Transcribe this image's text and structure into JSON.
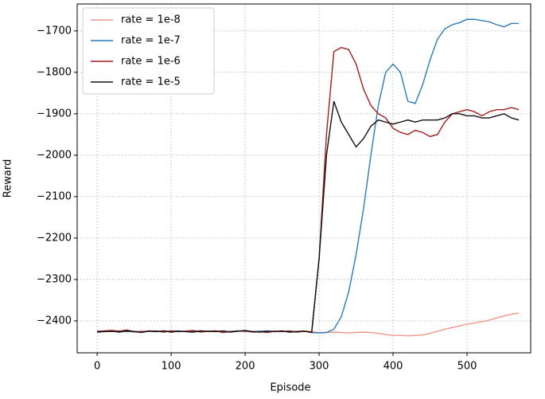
{
  "chart_data": {
    "type": "line",
    "x_label": "Episode",
    "y_label": "Reward",
    "x": [
      0,
      10,
      20,
      30,
      40,
      50,
      60,
      70,
      80,
      90,
      100,
      110,
      120,
      130,
      140,
      150,
      160,
      170,
      180,
      190,
      200,
      210,
      220,
      230,
      240,
      250,
      260,
      270,
      280,
      290,
      300,
      310,
      320,
      330,
      340,
      350,
      360,
      370,
      380,
      390,
      400,
      410,
      420,
      430,
      440,
      450,
      460,
      470,
      480,
      490,
      500,
      510,
      520,
      530,
      540,
      550,
      560,
      570
    ],
    "series": [
      {
        "name": "rate = 1e-8",
        "color": "#f4978a",
        "values": [
          -2425,
          -2424,
          -2426,
          -2424,
          -2425,
          -2427,
          -2424,
          -2425,
          -2426,
          -2424,
          -2425,
          -2426,
          -2424,
          -2425,
          -2426,
          -2425,
          -2424,
          -2426,
          -2425,
          -2424,
          -2426,
          -2425,
          -2425,
          -2426,
          -2424,
          -2425,
          -2426,
          -2425,
          -2424,
          -2426,
          -2428,
          -2428,
          -2427,
          -2428,
          -2429,
          -2428,
          -2427,
          -2428,
          -2430,
          -2433,
          -2435,
          -2435,
          -2436,
          -2435,
          -2434,
          -2430,
          -2425,
          -2420,
          -2416,
          -2412,
          -2408,
          -2405,
          -2402,
          -2398,
          -2393,
          -2388,
          -2384,
          -2381
        ]
      },
      {
        "name": "rate = 1e-7",
        "color": "#2b7bba",
        "values": [
          -2424,
          -2426,
          -2425,
          -2424,
          -2426,
          -2425,
          -2427,
          -2425,
          -2424,
          -2426,
          -2425,
          -2424,
          -2426,
          -2425,
          -2424,
          -2426,
          -2425,
          -2425,
          -2426,
          -2424,
          -2425,
          -2426,
          -2425,
          -2424,
          -2426,
          -2425,
          -2427,
          -2426,
          -2425,
          -2428,
          -2429,
          -2428,
          -2420,
          -2390,
          -2330,
          -2240,
          -2130,
          -2000,
          -1880,
          -1800,
          -1780,
          -1800,
          -1870,
          -1875,
          -1830,
          -1770,
          -1720,
          -1695,
          -1685,
          -1680,
          -1672,
          -1672,
          -1675,
          -1678,
          -1685,
          -1690,
          -1682,
          -1682
        ]
      },
      {
        "name": "rate = 1e-6",
        "color": "#a51c1c",
        "values": [
          -2426,
          -2424,
          -2423,
          -2425,
          -2422,
          -2426,
          -2428,
          -2424,
          -2425,
          -2427,
          -2424,
          -2426,
          -2425,
          -2423,
          -2427,
          -2425,
          -2424,
          -2428,
          -2426,
          -2425,
          -2424,
          -2427,
          -2426,
          -2428,
          -2425,
          -2426,
          -2424,
          -2427,
          -2425,
          -2428,
          -2250,
          -1950,
          -1750,
          -1740,
          -1745,
          -1780,
          -1840,
          -1880,
          -1900,
          -1910,
          -1935,
          -1945,
          -1950,
          -1940,
          -1945,
          -1955,
          -1950,
          -1920,
          -1900,
          -1895,
          -1890,
          -1895,
          -1905,
          -1895,
          -1890,
          -1890,
          -1885,
          -1890
        ]
      },
      {
        "name": "rate = 1e-5",
        "color": "#111111",
        "values": [
          -2427,
          -2426,
          -2425,
          -2427,
          -2424,
          -2426,
          -2427,
          -2425,
          -2426,
          -2424,
          -2427,
          -2425,
          -2426,
          -2427,
          -2424,
          -2425,
          -2426,
          -2424,
          -2427,
          -2425,
          -2423,
          -2426,
          -2427,
          -2425,
          -2426,
          -2424,
          -2427,
          -2426,
          -2425,
          -2427,
          -2250,
          -2000,
          -1870,
          -1920,
          -1950,
          -1980,
          -1960,
          -1930,
          -1915,
          -1920,
          -1925,
          -1920,
          -1915,
          -1920,
          -1915,
          -1915,
          -1915,
          -1910,
          -1900,
          -1900,
          -1905,
          -1905,
          -1910,
          -1910,
          -1905,
          -1900,
          -1910,
          -1915
        ]
      }
    ],
    "xlim": [
      -27,
      586
    ],
    "ylim": [
      -2477,
      -1635
    ],
    "xticks": [
      0,
      100,
      200,
      300,
      400,
      500
    ],
    "yticks": [
      {
        "value": -2400,
        "label": "−2400"
      },
      {
        "value": -2300,
        "label": "−2300"
      },
      {
        "value": -2200,
        "label": "−2200"
      },
      {
        "value": -2100,
        "label": "−2100"
      },
      {
        "value": -2000,
        "label": "−2000"
      },
      {
        "value": -1900,
        "label": "−1900"
      },
      {
        "value": -1800,
        "label": "−1800"
      },
      {
        "value": -1700,
        "label": "−1700"
      }
    ],
    "grid": true,
    "legend": "upper-left"
  }
}
